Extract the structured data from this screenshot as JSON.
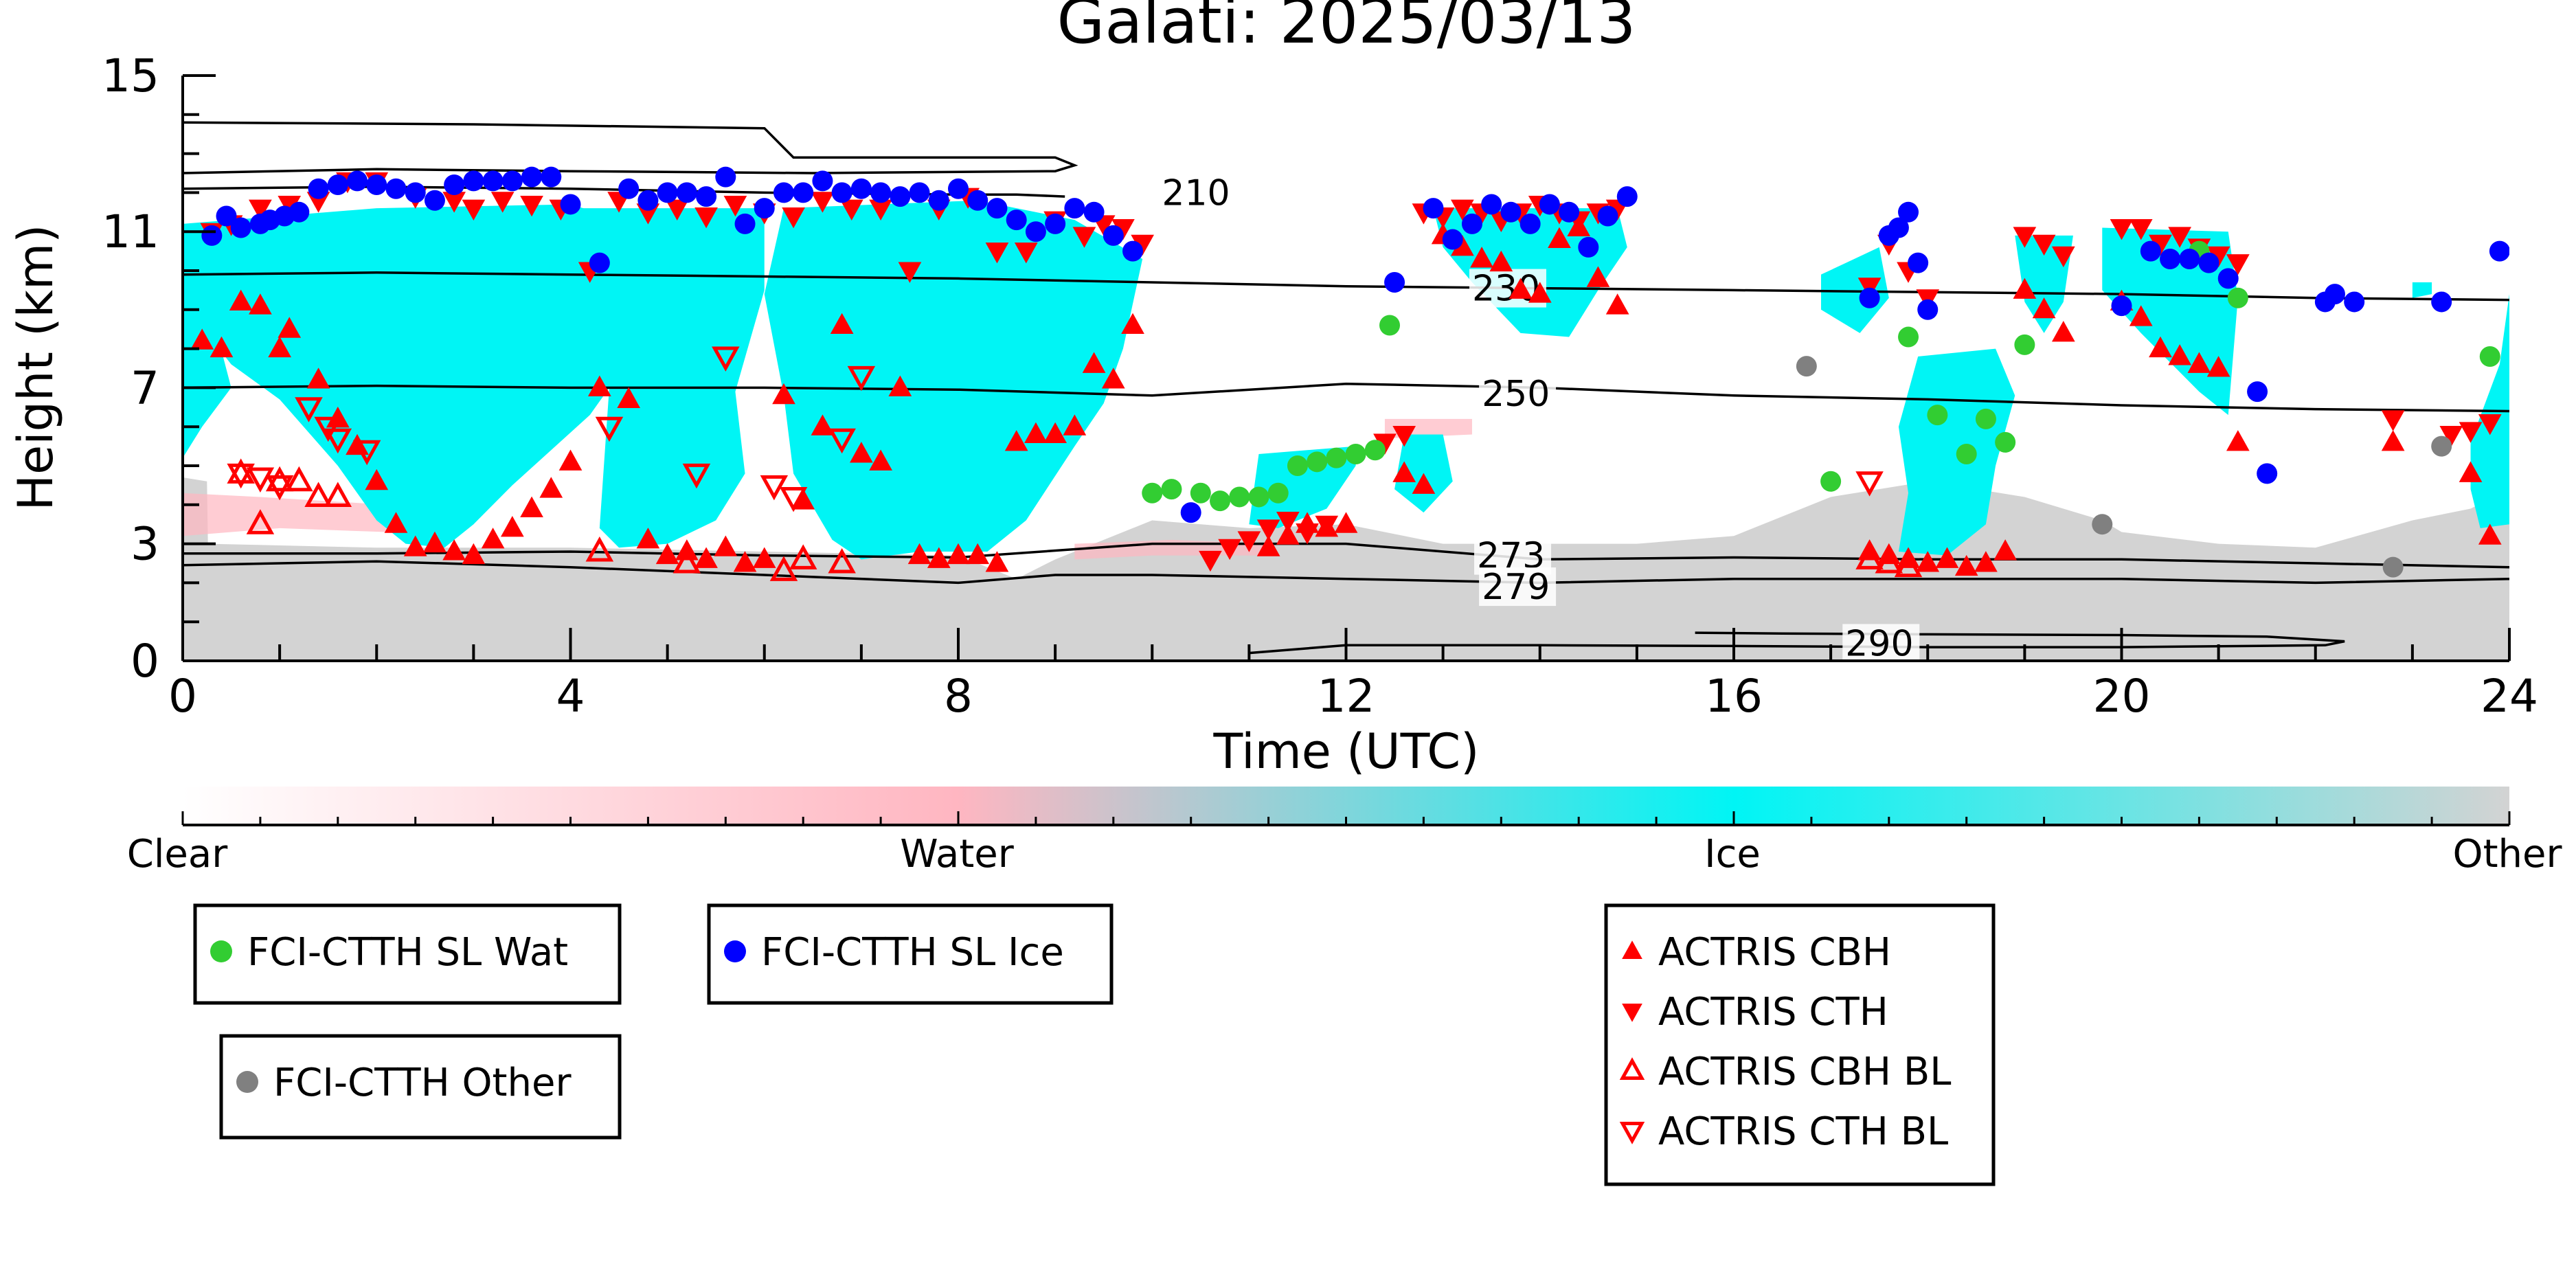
{
  "chart_data": {
    "type": "scatter",
    "title": "Galati: 2025/03/13",
    "xlabel": "Time (UTC)",
    "ylabel": "Height (km)",
    "xlim": [
      0,
      24
    ],
    "ylim": [
      0,
      15
    ],
    "x_ticks": [
      0,
      4,
      8,
      12,
      16,
      20,
      24
    ],
    "y_ticks": [
      0,
      3,
      7,
      11,
      15
    ],
    "grid": false,
    "colorbar": {
      "labels": [
        "Clear",
        "Water",
        "Ice",
        "Other"
      ],
      "colors": [
        "#ffffff",
        "#ffb6c1",
        "#00f5f5",
        "#d3d3d3"
      ]
    },
    "isotherm_labels": [
      "210",
      "230",
      "250",
      "273",
      "279",
      "290"
    ],
    "isotherms": [
      {
        "label": "210",
        "x": [
          0,
          2,
          4,
          6,
          8,
          8.6,
          9.1
        ],
        "y": [
          12.1,
          12.15,
          12.1,
          12.0,
          11.95,
          11.95,
          11.9
        ]
      },
      {
        "label": "230",
        "x": [
          0,
          2,
          4,
          6,
          8,
          10,
          12,
          14,
          16,
          18,
          20,
          22,
          24
        ],
        "y": [
          9.9,
          9.95,
          9.9,
          9.85,
          9.8,
          9.7,
          9.6,
          9.55,
          9.5,
          9.45,
          9.4,
          9.3,
          9.25
        ]
      },
      {
        "label": "250",
        "x": [
          0,
          2,
          4,
          6,
          8,
          10,
          12,
          14,
          16,
          18,
          20,
          22,
          24
        ],
        "y": [
          7.0,
          7.05,
          7.0,
          7.0,
          6.95,
          6.8,
          7.1,
          7.0,
          6.8,
          6.7,
          6.55,
          6.45,
          6.4
        ]
      },
      {
        "label": "273",
        "x": [
          0,
          2,
          4,
          6,
          8,
          10,
          12,
          14,
          16,
          18,
          20,
          22,
          24
        ],
        "y": [
          2.75,
          2.75,
          2.8,
          2.7,
          2.65,
          3.0,
          3.0,
          2.6,
          2.65,
          2.6,
          2.6,
          2.5,
          2.4
        ]
      },
      {
        "label": "279",
        "x": [
          0,
          2,
          4,
          6,
          8,
          9,
          10,
          12,
          14,
          16,
          18,
          20,
          22,
          24
        ],
        "y": [
          2.45,
          2.55,
          2.4,
          2.2,
          2.0,
          2.2,
          2.2,
          2.1,
          2.0,
          2.1,
          2.1,
          2.1,
          2.0,
          2.1
        ]
      },
      {
        "label": "290",
        "x": [
          15.6,
          16.5,
          18,
          20,
          21.5,
          22.3,
          22.1,
          20,
          18,
          16,
          14,
          12,
          11
        ],
        "y": [
          0.72,
          0.7,
          0.68,
          0.66,
          0.62,
          0.5,
          0.4,
          0.35,
          0.35,
          0.38,
          0.4,
          0.4,
          0.2
        ]
      },
      {
        "label": "",
        "x": [
          0,
          3,
          6,
          6.3,
          9,
          9.2,
          9,
          6.5,
          4,
          2,
          0
        ],
        "y": [
          13.8,
          13.75,
          13.65,
          12.9,
          12.9,
          12.7,
          12.55,
          12.5,
          12.55,
          12.6,
          12.5
        ]
      }
    ],
    "legend": [
      {
        "name": "FCI-CTTH SL Wat",
        "marker": "circle",
        "color": "#32cd32"
      },
      {
        "name": "FCI-CTTH SL Ice",
        "marker": "circle",
        "color": "#0000ff"
      },
      {
        "name": "FCI-CTTH Other",
        "marker": "circle",
        "color": "#808080"
      },
      {
        "name": "ACTRIS CBH",
        "marker": "triangle-up",
        "color": "#ff0000"
      },
      {
        "name": "ACTRIS CTH",
        "marker": "triangle-down",
        "color": "#ff0000"
      },
      {
        "name": "ACTRIS CBH BL",
        "marker": "triangle-up-open",
        "color": "#ff0000"
      },
      {
        "name": "ACTRIS CTH BL",
        "marker": "triangle-down-open",
        "color": "#ff0000"
      }
    ],
    "series": [
      {
        "name": "FCI-CTTH SL Wat",
        "x": [
          10.0,
          10.2,
          10.5,
          10.7,
          10.9,
          11.1,
          11.3,
          11.5,
          11.7,
          11.9,
          12.1,
          12.3,
          12.45,
          17.0,
          17.8,
          18.1,
          18.4,
          18.6,
          18.8,
          19.0,
          20.8,
          21.2,
          23.8
        ],
        "y": [
          4.3,
          4.4,
          4.3,
          4.1,
          4.2,
          4.2,
          4.3,
          5.0,
          5.1,
          5.2,
          5.3,
          5.4,
          8.6,
          4.6,
          8.3,
          6.3,
          5.3,
          6.2,
          5.6,
          8.1,
          10.5,
          9.3,
          7.8
        ]
      },
      {
        "name": "FCI-CTTH SL Ice",
        "x": [
          0.3,
          0.45,
          0.6,
          0.8,
          0.9,
          1.05,
          1.2,
          1.4,
          1.6,
          1.8,
          2.0,
          2.2,
          2.4,
          2.6,
          2.8,
          3.0,
          3.2,
          3.4,
          3.6,
          3.8,
          4.0,
          4.3,
          4.6,
          4.8,
          5.0,
          5.2,
          5.4,
          5.6,
          5.8,
          6.0,
          6.2,
          6.4,
          6.6,
          6.8,
          7.0,
          7.2,
          7.4,
          7.6,
          7.8,
          8.0,
          8.2,
          8.4,
          8.6,
          8.8,
          9.0,
          9.2,
          9.4,
          9.6,
          9.8,
          10.4,
          12.5,
          12.9,
          13.1,
          13.3,
          13.5,
          13.7,
          13.9,
          14.1,
          14.3,
          14.5,
          14.7,
          14.9,
          17.4,
          17.6,
          17.7,
          17.8,
          17.9,
          18.0,
          20.0,
          20.3,
          20.5,
          20.7,
          20.9,
          21.1,
          21.4,
          21.5,
          22.1,
          22.2,
          22.4,
          23.3,
          23.9
        ],
        "y": [
          10.9,
          11.4,
          11.1,
          11.2,
          11.3,
          11.4,
          11.5,
          12.1,
          12.2,
          12.3,
          12.2,
          12.1,
          12.0,
          11.8,
          12.2,
          12.3,
          12.3,
          12.3,
          12.4,
          12.4,
          11.7,
          10.2,
          12.1,
          11.8,
          12.0,
          12.0,
          11.9,
          12.4,
          11.2,
          11.6,
          12.0,
          12.0,
          12.3,
          12.0,
          12.1,
          12.0,
          11.9,
          12.0,
          11.8,
          12.1,
          11.8,
          11.6,
          11.3,
          11.0,
          11.2,
          11.6,
          11.5,
          10.9,
          10.5,
          3.8,
          9.7,
          11.6,
          10.8,
          11.2,
          11.7,
          11.5,
          11.2,
          11.7,
          11.5,
          10.6,
          11.4,
          11.9,
          9.3,
          10.9,
          11.1,
          11.5,
          10.2,
          9.0,
          9.1,
          10.5,
          10.3,
          10.3,
          10.2,
          9.8,
          6.9,
          4.8,
          9.2,
          9.4,
          9.2,
          9.2,
          10.5
        ]
      },
      {
        "name": "FCI-CTTH Other",
        "x": [
          16.75,
          19.8,
          22.8,
          23.3
        ],
        "y": [
          7.55,
          3.5,
          2.4,
          5.5
        ]
      },
      {
        "name": "ACTRIS CBH",
        "x": [
          0.2,
          0.4,
          0.6,
          0.8,
          1.0,
          1.1,
          1.4,
          1.6,
          1.8,
          2.0,
          2.2,
          2.4,
          2.6,
          2.8,
          3.0,
          3.2,
          3.4,
          3.6,
          3.8,
          4.0,
          4.3,
          4.6,
          4.8,
          5.0,
          5.2,
          5.4,
          5.6,
          5.8,
          6.0,
          6.2,
          6.4,
          6.6,
          6.8,
          7.0,
          7.2,
          7.4,
          7.6,
          7.8,
          8.0,
          8.2,
          8.4,
          8.6,
          8.8,
          9.0,
          9.2,
          9.4,
          9.6,
          9.8,
          11.2,
          11.4,
          11.6,
          11.8,
          12.0,
          12.6,
          12.8,
          13.0,
          13.2,
          13.4,
          13.6,
          13.8,
          14.0,
          14.2,
          14.4,
          14.6,
          14.8,
          17.4,
          17.6,
          17.8,
          18.0,
          18.2,
          18.4,
          18.6,
          18.8,
          19.0,
          19.2,
          19.4,
          20.0,
          20.2,
          20.4,
          20.6,
          20.8,
          21.0,
          21.2,
          22.8,
          23.6,
          23.8
        ],
        "y": [
          8.2,
          8.0,
          9.2,
          9.1,
          8.0,
          8.5,
          7.2,
          6.2,
          5.5,
          4.6,
          3.5,
          2.9,
          3.0,
          2.8,
          2.7,
          3.1,
          3.4,
          3.9,
          4.4,
          5.1,
          7.0,
          6.7,
          3.1,
          2.7,
          2.8,
          2.6,
          2.9,
          2.5,
          2.6,
          6.8,
          4.1,
          6.0,
          8.6,
          5.3,
          5.1,
          7.0,
          2.7,
          2.6,
          2.7,
          2.7,
          2.5,
          5.6,
          5.8,
          5.8,
          6.0,
          7.6,
          7.2,
          8.6,
          2.9,
          3.2,
          3.5,
          3.4,
          3.5,
          4.8,
          4.5,
          10.9,
          10.6,
          10.3,
          10.2,
          9.5,
          9.4,
          10.8,
          11.1,
          9.8,
          9.1,
          2.8,
          2.7,
          2.6,
          2.5,
          2.6,
          2.4,
          2.5,
          2.8,
          9.5,
          9.0,
          8.4,
          9.2,
          8.8,
          8.0,
          7.8,
          7.6,
          7.5,
          5.6,
          5.6,
          4.8,
          3.2
        ]
      },
      {
        "name": "ACTRIS CTH",
        "x": [
          0.3,
          0.5,
          0.8,
          1.1,
          1.4,
          1.7,
          2.0,
          2.4,
          2.8,
          3.0,
          3.3,
          3.6,
          3.9,
          4.2,
          4.5,
          4.8,
          5.1,
          5.4,
          5.7,
          6.0,
          6.3,
          6.6,
          6.9,
          7.2,
          7.5,
          7.8,
          8.1,
          8.4,
          8.7,
          9.0,
          9.3,
          9.5,
          9.7,
          9.9,
          10.6,
          10.8,
          11.0,
          11.2,
          11.4,
          11.6,
          11.8,
          12.4,
          12.6,
          12.8,
          13.0,
          13.2,
          13.4,
          13.6,
          13.8,
          14.0,
          14.2,
          14.4,
          14.6,
          14.8,
          17.4,
          17.6,
          17.8,
          18.0,
          19.0,
          19.2,
          19.4,
          20.0,
          20.2,
          20.4,
          20.6,
          20.8,
          21.0,
          21.2,
          22.8,
          23.4,
          23.6,
          23.8
        ],
        "y": [
          11.0,
          11.2,
          11.6,
          11.7,
          11.8,
          12.3,
          12.3,
          11.9,
          11.8,
          11.6,
          11.8,
          11.7,
          11.6,
          10.0,
          11.8,
          11.5,
          11.6,
          11.4,
          11.7,
          11.5,
          11.4,
          11.8,
          11.6,
          11.6,
          10.0,
          11.6,
          11.9,
          10.5,
          10.5,
          11.3,
          10.9,
          11.2,
          11.1,
          10.7,
          2.6,
          2.9,
          3.1,
          3.4,
          3.6,
          3.3,
          3.5,
          5.6,
          5.8,
          11.5,
          11.4,
          11.6,
          11.5,
          11.3,
          11.5,
          11.7,
          11.5,
          11.3,
          11.5,
          11.6,
          9.6,
          10.7,
          10.0,
          9.3,
          10.9,
          10.7,
          10.4,
          11.1,
          11.1,
          10.7,
          10.9,
          10.6,
          10.4,
          10.2,
          6.2,
          5.8,
          5.9,
          6.1
        ]
      },
      {
        "name": "ACTRIS CBH BL",
        "x": [
          0.6,
          0.8,
          1.0,
          1.2,
          1.4,
          1.6,
          4.3,
          5.2,
          6.2,
          6.8,
          6.4,
          17.4,
          17.6,
          17.8
        ],
        "y": [
          4.8,
          3.5,
          4.6,
          4.6,
          4.2,
          4.2,
          2.8,
          2.5,
          2.3,
          2.5,
          2.6,
          2.6,
          2.5,
          2.4
        ]
      },
      {
        "name": "ACTRIS CTH BL",
        "x": [
          0.6,
          0.8,
          1.0,
          1.3,
          1.5,
          1.6,
          1.9,
          4.4,
          5.3,
          5.6,
          6.1,
          6.3,
          6.8,
          7.0,
          17.4
        ],
        "y": [
          4.8,
          4.7,
          4.5,
          6.5,
          6.0,
          5.7,
          5.4,
          6.0,
          4.8,
          7.8,
          4.5,
          4.2,
          5.7,
          7.3,
          4.6
        ]
      }
    ]
  }
}
